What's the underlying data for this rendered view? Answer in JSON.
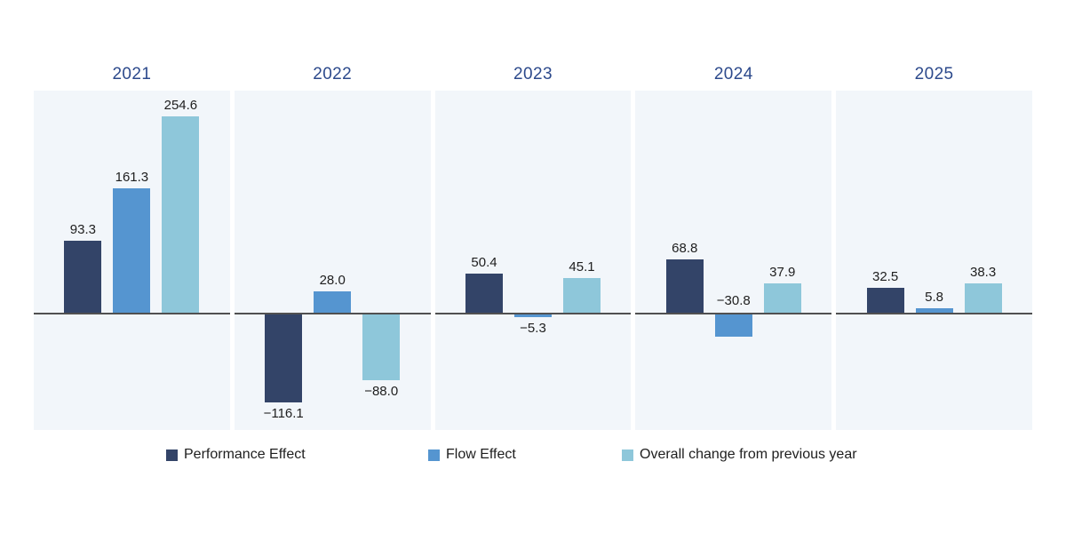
{
  "page": {
    "background": "#ffffff",
    "panel_background": "#f2f6fa"
  },
  "chart_data": {
    "type": "bar",
    "title": "",
    "categories": [
      "2021",
      "2022",
      "2023",
      "2024",
      "2025"
    ],
    "series": [
      {
        "name": "Performance Effect",
        "color": "#334468",
        "values": [
          93.3,
          -116.1,
          50.4,
          68.8,
          32.5
        ],
        "labels": [
          "93.3",
          "−116.1",
          "50.4",
          "68.8",
          "32.5"
        ]
      },
      {
        "name": "Flow Effect",
        "color": "#5595d0",
        "values": [
          161.3,
          28.0,
          -5.3,
          -30.8,
          5.8
        ],
        "labels": [
          "161.3",
          "28.0",
          "−5.3",
          "−30.8",
          "5.8"
        ]
      },
      {
        "name": "Overall change from previous year",
        "color": "#8ec7da",
        "values": [
          254.6,
          -88.0,
          45.1,
          37.9,
          38.3
        ],
        "labels": [
          "254.6",
          "−88.0",
          "45.1",
          "37.9",
          "38.3"
        ]
      }
    ],
    "ylim": [
      -152,
      288
    ],
    "grid": false,
    "value_labels": "shown, one decimal",
    "legend_position": "bottom",
    "label_overrides": [
      {
        "category": "2024",
        "series": "Flow Effect",
        "position": "above-zero"
      }
    ],
    "title_color": "#2d4a8c",
    "zero_line_color": "#505050",
    "value_label_color": "#1e1e1e"
  }
}
